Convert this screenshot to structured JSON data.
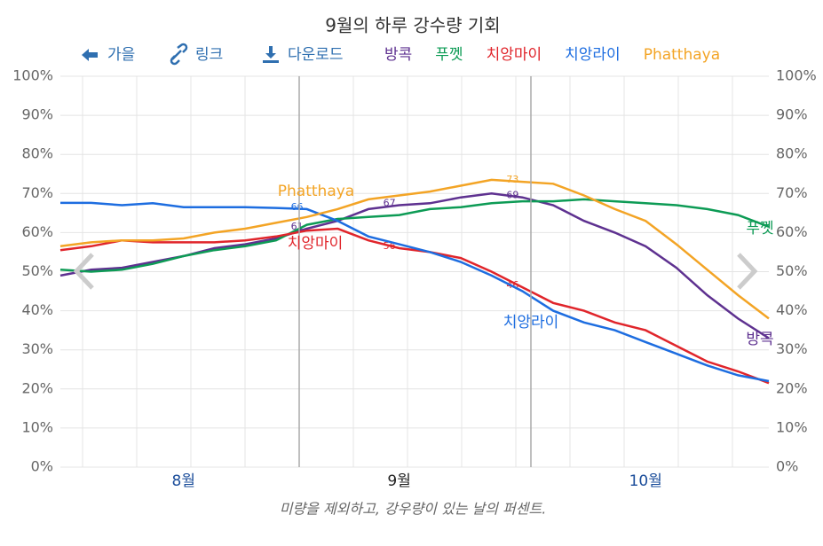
{
  "toolbar": [
    "가을",
    "링크",
    "다운로드"
  ],
  "chart_data": {
    "type": "line",
    "title": "9월의 하루 강수량 기회",
    "caption": "미량을 제외하고, 강우량이 있는 날의 퍼센트.",
    "categories": [
      null,
      null,
      null,
      null,
      "8월",
      null,
      null,
      null,
      null,
      null,
      null,
      "9월",
      null,
      null,
      null,
      null,
      null,
      null,
      null,
      "10월",
      null,
      null,
      null,
      null
    ],
    "series": [
      {
        "name": "방콕",
        "color": "#5e3190",
        "values": [
          49,
          50.5,
          51,
          52.5,
          54,
          56,
          57,
          58.5,
          61,
          63,
          66,
          67,
          67.5,
          69,
          70,
          69,
          67,
          63,
          60,
          56.5,
          51,
          44,
          38,
          33
        ],
        "point_labels": [
          null,
          null,
          null,
          null,
          null,
          null,
          null,
          null,
          61,
          null,
          null,
          67,
          null,
          null,
          null,
          69,
          null,
          null,
          null,
          null,
          null,
          null,
          null,
          null
        ]
      },
      {
        "name": "푸껫",
        "color": "#0d9b55",
        "values": [
          50.5,
          50,
          50.5,
          52,
          54,
          55.5,
          56.5,
          58,
          62,
          63.5,
          64,
          64.5,
          66,
          66.5,
          67.5,
          68,
          68,
          68.5,
          68,
          67.5,
          67,
          66,
          64.5,
          61.5
        ]
      },
      {
        "name": "치앙마이",
        "color": "#e0252b",
        "values": [
          55.5,
          56.5,
          58,
          57.5,
          57.5,
          57.5,
          58,
          59,
          60.5,
          61,
          58,
          56,
          55,
          53.5,
          50,
          46,
          42,
          40,
          37,
          35,
          31,
          27,
          24.5,
          21.5
        ],
        "point_labels": [
          null,
          null,
          null,
          null,
          null,
          null,
          null,
          null,
          null,
          null,
          null,
          56,
          null,
          null,
          null,
          46,
          null,
          null,
          null,
          null,
          null,
          null,
          null,
          null
        ]
      },
      {
        "name": "치앙라이",
        "color": "#1d6de0",
        "values": [
          67.6,
          67.6,
          67,
          67.5,
          66.5,
          66.5,
          66.5,
          66.3,
          66,
          63,
          59,
          57,
          55,
          52.5,
          49,
          45,
          40,
          37,
          35,
          32,
          29,
          26,
          23.5,
          22
        ],
        "point_labels": [
          null,
          null,
          null,
          null,
          null,
          null,
          null,
          null,
          66,
          null,
          null,
          null,
          null,
          null,
          null,
          null,
          null,
          null,
          null,
          null,
          null,
          null,
          null,
          null
        ]
      },
      {
        "name": "Phatthaya",
        "color": "#f3a425",
        "values": [
          56.5,
          57.5,
          58,
          58,
          58.5,
          60,
          61,
          62.5,
          64,
          66,
          68.5,
          69.5,
          70.5,
          72,
          73.5,
          73,
          72.5,
          69.5,
          66,
          63,
          57,
          50.5,
          44,
          38
        ],
        "point_labels": [
          null,
          null,
          null,
          null,
          null,
          null,
          null,
          null,
          null,
          null,
          null,
          null,
          null,
          null,
          null,
          73,
          null,
          null,
          null,
          null,
          null,
          null,
          null,
          null
        ]
      }
    ],
    "ylim": [
      0,
      100
    ],
    "yticks": [
      {
        "value": 0,
        "label": "0%"
      },
      {
        "value": 10,
        "label": "10%"
      },
      {
        "value": 20,
        "label": "20%"
      },
      {
        "value": 30,
        "label": "30%"
      },
      {
        "value": 40,
        "label": "40%"
      },
      {
        "value": 50,
        "label": "50%"
      },
      {
        "value": 60,
        "label": "60%"
      },
      {
        "value": 70,
        "label": "70%"
      },
      {
        "value": 80,
        "label": "80%"
      },
      {
        "value": 90,
        "label": "90%"
      },
      {
        "value": 100,
        "label": "100%"
      }
    ],
    "grid": true
  }
}
